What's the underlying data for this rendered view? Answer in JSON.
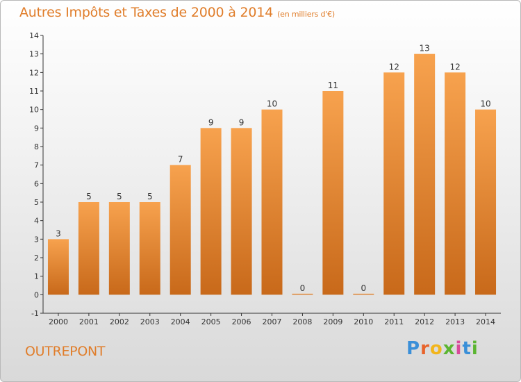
{
  "header": {
    "title": "Autres Impôts et Taxes de 2000 à 2014",
    "unit": "(en milliers d'€)"
  },
  "footer": {
    "place": "OUTREPONT",
    "brand": "Proxiti",
    "brand_colors": [
      "#3a8fd8",
      "#e8632b",
      "#f2b51c",
      "#5bb531",
      "#d94a9a",
      "#3a8fd8",
      "#5bb531"
    ]
  },
  "chart_data": {
    "type": "bar",
    "title": "Autres Impôts et Taxes de 2000 à 2014",
    "subtitle": "(en milliers d'€)",
    "categories": [
      "2000",
      "2001",
      "2002",
      "2003",
      "2004",
      "2005",
      "2006",
      "2007",
      "2008",
      "2009",
      "2010",
      "2011",
      "2012",
      "2013",
      "2014"
    ],
    "values": [
      3,
      5,
      5,
      5,
      7,
      9,
      9,
      10,
      0,
      11,
      0,
      12,
      13,
      12,
      10
    ],
    "ylim": [
      -1,
      14
    ],
    "yticks": [
      -1,
      0,
      1,
      2,
      3,
      4,
      5,
      6,
      7,
      8,
      9,
      10,
      11,
      12,
      13,
      14
    ],
    "ytick_labels": [
      "-1",
      "0",
      "1",
      "2",
      "3",
      "4",
      "5",
      "6",
      "7",
      "8",
      "9",
      "10",
      "11",
      "12",
      "13",
      "14"
    ],
    "grid": false,
    "colors": {
      "bar_light": "#f7a24e",
      "bar_dark": "#c8691a",
      "axis": "#333333"
    }
  }
}
